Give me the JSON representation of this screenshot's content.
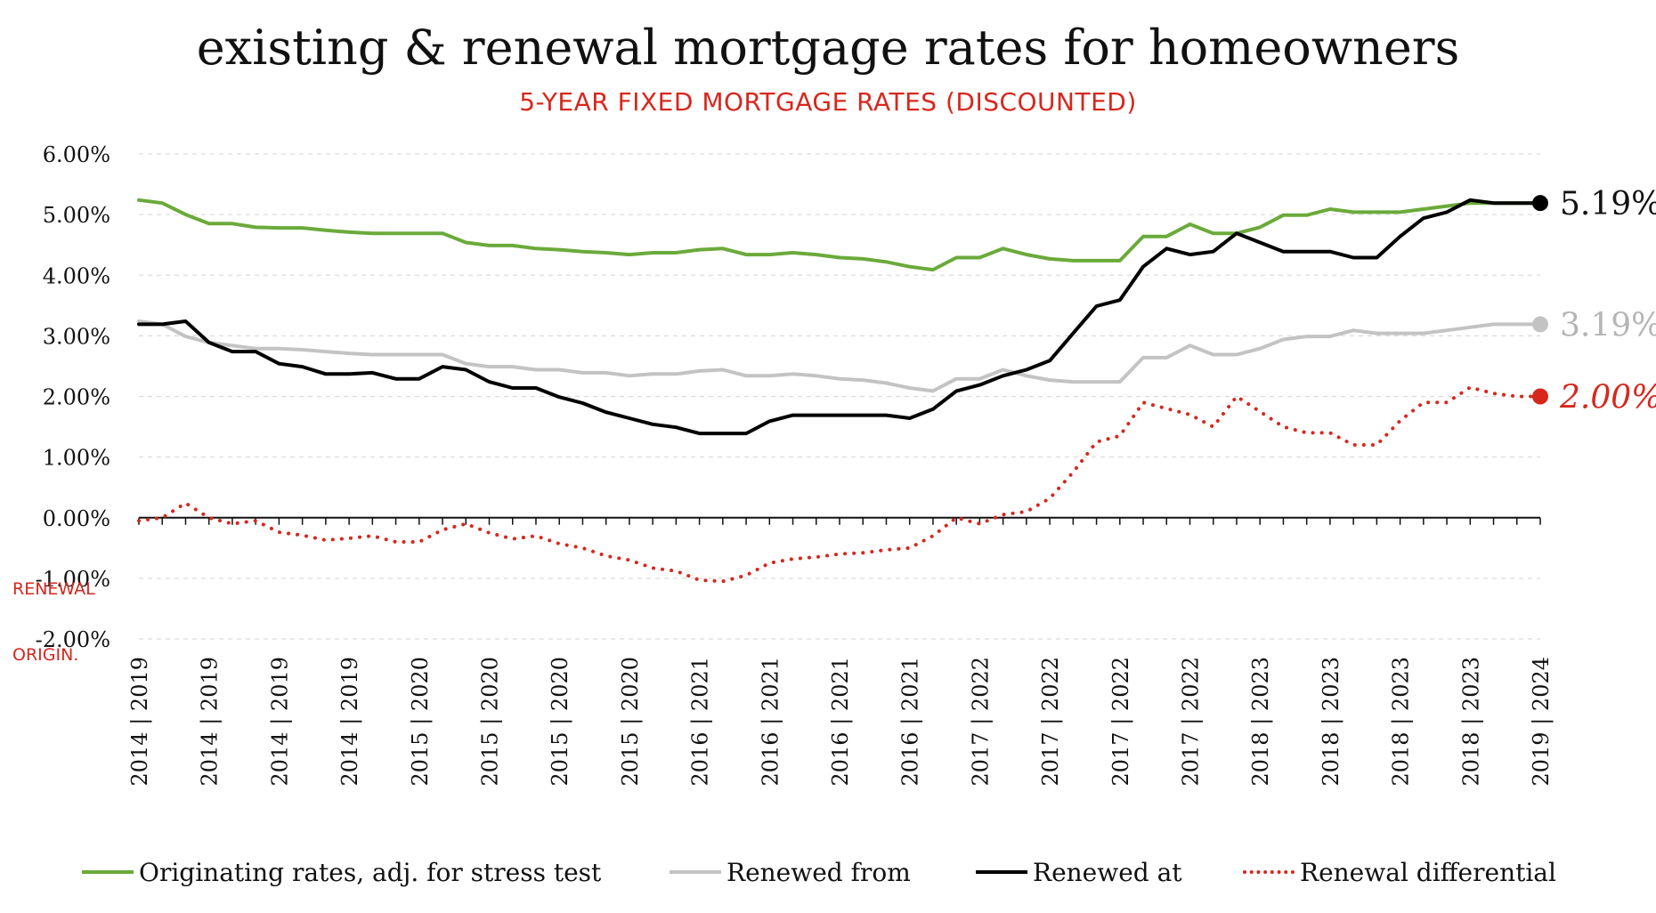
{
  "title": "existing & renewal mortgage rates for homeowners",
  "subtitle": "5-YEAR FIXED MORTGAGE RATES (DISCOUNTED)",
  "row_labels": {
    "renewal": "RENEWAL",
    "origination": "ORIGIN."
  },
  "colors": {
    "originating": "#6aaa3a",
    "renewed_from": "#c3c3c3",
    "renewed_at": "#000000",
    "differential": "#d7271d"
  },
  "end_labels": {
    "renewed_at": "5.19%",
    "renewed_from": "3.19%",
    "differential": "2.00%"
  },
  "chart_data": {
    "type": "line",
    "title": "existing & renewal mortgage rates for homeowners",
    "subtitle": "5-YEAR FIXED MORTGAGE RATES (DISCOUNTED)",
    "ylim": [
      -2,
      6
    ],
    "y_ticks": [
      "-2.00%",
      "-1.00%",
      "0.00%",
      "1.00%",
      "2.00%",
      "3.00%",
      "4.00%",
      "5.00%",
      "6.00%"
    ],
    "x_tick_labels": [
      "2014 | 2019",
      "2014 | 2019",
      "2014 | 2019",
      "2014 | 2019",
      "2015 | 2020",
      "2015 | 2020",
      "2015 | 2020",
      "2015 | 2020",
      "2016 | 2021",
      "2016 | 2021",
      "2016 | 2021",
      "2016 | 2021",
      "2017 | 2022",
      "2017 | 2022",
      "2017 | 2022",
      "2017 | 2022",
      "2018 | 2023",
      "2018 | 2023",
      "2018 | 2023",
      "2018 | 2023",
      "2019 | 2024"
    ],
    "grid": "horizontal",
    "legend_position": "bottom",
    "series": [
      {
        "name": "Originating rates, adj. for stress test",
        "style": "solid",
        "values": [
          5.24,
          5.19,
          5.0,
          4.85,
          4.85,
          4.79,
          4.78,
          4.78,
          4.74,
          4.71,
          4.69,
          4.69,
          4.69,
          4.69,
          4.54,
          4.49,
          4.49,
          4.44,
          4.42,
          4.39,
          4.37,
          4.34,
          4.37,
          4.37,
          4.42,
          4.44,
          4.34,
          4.34,
          4.37,
          4.34,
          4.29,
          4.27,
          4.22,
          4.14,
          4.09,
          4.29,
          4.29,
          4.44,
          4.34,
          4.27,
          4.24,
          4.24,
          4.24,
          4.64,
          4.64,
          4.84,
          4.69,
          4.69,
          4.79,
          4.99,
          4.99,
          5.09,
          5.04,
          5.04,
          5.04,
          5.09,
          5.14,
          5.19,
          5.19,
          5.19,
          5.19
        ]
      },
      {
        "name": "Renewed from",
        "style": "solid",
        "values": [
          3.24,
          3.19,
          2.99,
          2.89,
          2.84,
          2.79,
          2.79,
          2.77,
          2.74,
          2.71,
          2.69,
          2.69,
          2.69,
          2.69,
          2.54,
          2.49,
          2.49,
          2.44,
          2.44,
          2.39,
          2.39,
          2.34,
          2.37,
          2.37,
          2.42,
          2.44,
          2.34,
          2.34,
          2.37,
          2.34,
          2.29,
          2.27,
          2.22,
          2.14,
          2.09,
          2.29,
          2.29,
          2.44,
          2.34,
          2.27,
          2.24,
          2.24,
          2.24,
          2.64,
          2.64,
          2.84,
          2.69,
          2.69,
          2.79,
          2.94,
          2.99,
          2.99,
          3.09,
          3.04,
          3.04,
          3.04,
          3.09,
          3.14,
          3.19,
          3.19,
          3.19
        ]
      },
      {
        "name": "Renewed at",
        "style": "solid",
        "values": [
          3.19,
          3.19,
          3.24,
          2.89,
          2.74,
          2.74,
          2.54,
          2.49,
          2.37,
          2.37,
          2.39,
          2.29,
          2.29,
          2.49,
          2.44,
          2.24,
          2.14,
          2.14,
          1.99,
          1.89,
          1.74,
          1.64,
          1.54,
          1.49,
          1.39,
          1.39,
          1.39,
          1.59,
          1.69,
          1.69,
          1.69,
          1.69,
          1.69,
          1.64,
          1.79,
          2.09,
          2.19,
          2.34,
          2.44,
          2.59,
          3.04,
          3.49,
          3.59,
          4.14,
          4.44,
          4.34,
          4.39,
          4.69,
          4.54,
          4.39,
          4.39,
          4.39,
          4.29,
          4.29,
          4.64,
          4.94,
          5.04,
          5.24,
          5.19,
          5.19,
          5.19
        ]
      },
      {
        "name": "Renewal differential",
        "style": "dotted",
        "values": [
          -0.05,
          0.0,
          0.24,
          0.0,
          -0.1,
          -0.05,
          -0.24,
          -0.29,
          -0.37,
          -0.34,
          -0.3,
          -0.4,
          -0.4,
          -0.2,
          -0.1,
          -0.25,
          -0.35,
          -0.3,
          -0.43,
          -0.5,
          -0.63,
          -0.7,
          -0.83,
          -0.88,
          -1.03,
          -1.05,
          -0.95,
          -0.75,
          -0.68,
          -0.65,
          -0.6,
          -0.58,
          -0.53,
          -0.5,
          -0.3,
          0.0,
          -0.1,
          0.05,
          0.1,
          0.32,
          0.75,
          1.25,
          1.35,
          1.9,
          1.8,
          1.7,
          1.5,
          2.0,
          1.75,
          1.5,
          1.4,
          1.4,
          1.2,
          1.2,
          1.6,
          1.9,
          1.9,
          2.15,
          2.05,
          2.0,
          2.0
        ]
      }
    ]
  }
}
